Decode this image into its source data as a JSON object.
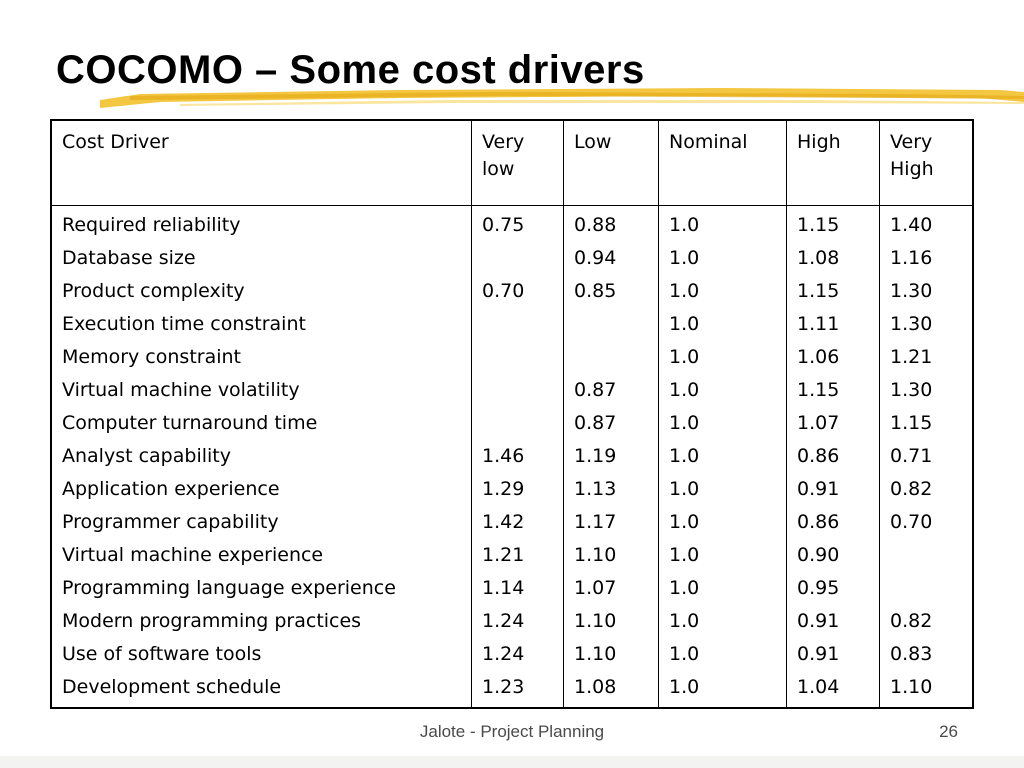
{
  "slide": {
    "title": "COCOMO – Some cost drivers",
    "accent_color": "#f2c12e"
  },
  "table": {
    "headers": [
      "Cost Driver",
      "Very\nlow",
      "Low",
      "Nominal",
      "High",
      "Very\nHigh"
    ],
    "rows": [
      [
        "Required reliability",
        "0.75",
        "0.88",
        "1.0",
        "1.15",
        "1.40"
      ],
      [
        "Database size",
        "",
        "0.94",
        "1.0",
        "1.08",
        "1.16"
      ],
      [
        "Product complexity",
        "0.70",
        "0.85",
        "1.0",
        "1.15",
        "1.30"
      ],
      [
        "Execution time constraint",
        "",
        "",
        "1.0",
        "1.11",
        "1.30"
      ],
      [
        "Memory constraint",
        "",
        "",
        "1.0",
        "1.06",
        "1.21"
      ],
      [
        "Virtual machine volatility",
        "",
        "0.87",
        "1.0",
        "1.15",
        "1.30"
      ],
      [
        "Computer turnaround time",
        "",
        "0.87",
        "1.0",
        "1.07",
        "1.15"
      ],
      [
        "Analyst capability",
        "1.46",
        "1.19",
        "1.0",
        "0.86",
        "0.71"
      ],
      [
        "Application experience",
        "1.29",
        "1.13",
        "1.0",
        "0.91",
        "0.82"
      ],
      [
        "Programmer capability",
        "1.42",
        "1.17",
        "1.0",
        "0.86",
        "0.70"
      ],
      [
        "Virtual machine experience",
        "1.21",
        "1.10",
        "1.0",
        "0.90",
        ""
      ],
      [
        "Programming language experience",
        "1.14",
        "1.07",
        "1.0",
        "0.95",
        ""
      ],
      [
        "Modern programming practices",
        "1.24",
        "1.10",
        "1.0",
        "0.91",
        "0.82"
      ],
      [
        "Use of software tools",
        "1.24",
        "1.10",
        "1.0",
        "0.91",
        "0.83"
      ],
      [
        "Development schedule",
        "1.23",
        "1.08",
        "1.0",
        "1.04",
        "1.10"
      ]
    ]
  },
  "footer": {
    "text": "Jalote - Project Planning",
    "page_number": "26"
  }
}
